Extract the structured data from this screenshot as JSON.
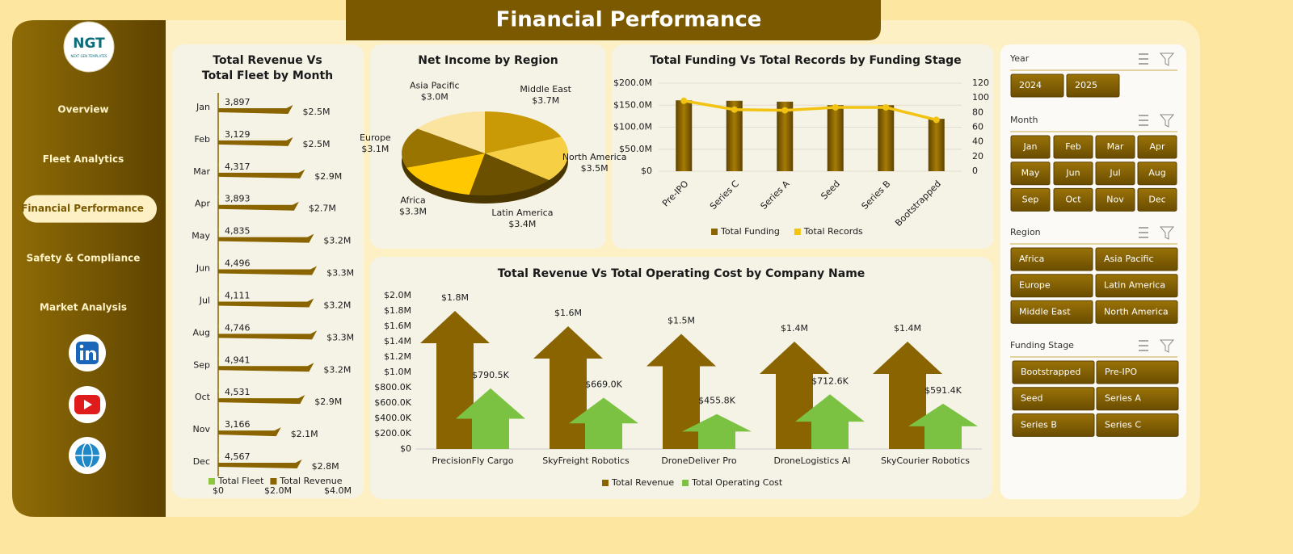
{
  "header": {
    "title": "Financial Performance"
  },
  "logo": {
    "name": "NGT",
    "tagline": "NEXT GEN TEMPLATES"
  },
  "nav": {
    "items": [
      "Overview",
      "Fleet Analytics",
      "Financial Performance",
      "Safety & Compliance",
      "Market Analysis"
    ],
    "active": 2
  },
  "slicers": [
    {
      "title": "Year",
      "items": [
        "2024",
        "2025"
      ]
    },
    {
      "title": "Month",
      "items": [
        "Jan",
        "Feb",
        "Mar",
        "Apr",
        "May",
        "Jun",
        "Jul",
        "Aug",
        "Sep",
        "Oct",
        "Nov",
        "Dec"
      ]
    },
    {
      "title": "Region",
      "items": [
        "Africa",
        "Asia Pacific",
        "Europe",
        "Latin America",
        "Middle East",
        "North America"
      ]
    },
    {
      "title": "Funding Stage",
      "items": [
        "Bootstrapped",
        "Pre-IPO",
        "Seed",
        "Series A",
        "Series B",
        "Series C"
      ]
    }
  ],
  "chart_data": [
    {
      "type": "bar",
      "orientation": "horizontal",
      "title": "Total Revenue Vs Total Fleet by Month",
      "categories": [
        "Jan",
        "Feb",
        "Mar",
        "Apr",
        "May",
        "Jun",
        "Jul",
        "Aug",
        "Sep",
        "Oct",
        "Nov",
        "Dec"
      ],
      "series": [
        {
          "name": "Total Fleet",
          "color": "#8dc63f",
          "values": [
            3897,
            3129,
            4317,
            3893,
            4835,
            4496,
            4111,
            4746,
            4941,
            4531,
            3166,
            4567
          ],
          "value_labels": [
            "3,897",
            "3,129",
            "4,317",
            "3,893",
            "4,835",
            "4,496",
            "4,111",
            "4,746",
            "4,941",
            "4,531",
            "3,166",
            "4,567"
          ]
        },
        {
          "name": "Total Revenue",
          "color": "#8a6400",
          "values": [
            2500000,
            2500000,
            2900000,
            2700000,
            3200000,
            3300000,
            3200000,
            3300000,
            3200000,
            2900000,
            2100000,
            2800000
          ],
          "value_labels": [
            "$2.5M",
            "$2.5M",
            "$2.9M",
            "$2.7M",
            "$3.2M",
            "$3.3M",
            "$3.2M",
            "$3.3M",
            "$3.2M",
            "$2.9M",
            "$2.1M",
            "$2.8M"
          ]
        }
      ],
      "xlim": [
        0,
        4000000
      ],
      "xticks": [
        {
          "value": 0,
          "label": "$0"
        },
        {
          "value": 2000000,
          "label": "$2.0M"
        },
        {
          "value": 4000000,
          "label": "$4.0M"
        }
      ]
    },
    {
      "type": "pie",
      "title": "Net Income by Region",
      "categories": [
        "Middle East",
        "North America",
        "Latin America",
        "Africa",
        "Europe",
        "Asia Pacific"
      ],
      "values": [
        3700000,
        3500000,
        3400000,
        3300000,
        3100000,
        3000000
      ],
      "value_labels": [
        "$3.7M",
        "$3.5M",
        "$3.4M",
        "$3.3M",
        "$3.1M",
        "$3.0M"
      ],
      "colors": [
        "#c99a06",
        "#f6cf45",
        "#6b5000",
        "#ffc800",
        "#9a7400",
        "#fbe3a0"
      ]
    },
    {
      "type": "combo",
      "title": "Total Funding Vs Total Records by Funding Stage",
      "categories": [
        "Pre-IPO",
        "Series C",
        "Series A",
        "Seed",
        "Series B",
        "Bootstrapped"
      ],
      "series": [
        {
          "name": "Total Funding",
          "color": "#8a6400",
          "values": [
            161000000,
            160000000,
            158000000,
            150000000,
            150000000,
            119000000
          ]
        },
        {
          "name": "Total Records",
          "color": "#f2c311",
          "axis": "y2",
          "values": [
            96,
            84,
            83,
            87,
            87,
            70
          ]
        }
      ],
      "ylim": [
        0,
        200000000
      ],
      "yticks": [
        {
          "value": 0,
          "label": "$0"
        },
        {
          "value": 50000000,
          "label": "$50.0M"
        },
        {
          "value": 100000000,
          "label": "$100.0M"
        },
        {
          "value": 150000000,
          "label": "$150.0M"
        },
        {
          "value": 200000000,
          "label": "$200.0M"
        }
      ],
      "y2lim": [
        0,
        120
      ],
      "y2ticks": [
        0,
        20,
        40,
        60,
        80,
        100,
        120
      ],
      "grid": true
    },
    {
      "type": "bar",
      "orientation": "vertical",
      "title": "Total Revenue Vs Total Operating Cost by Company Name",
      "categories": [
        "PrecisionFly Cargo",
        "SkyFreight Robotics",
        "DroneDeliver Pro",
        "DroneLogistics AI",
        "SkyCourier Robotics"
      ],
      "series": [
        {
          "name": "Total Revenue",
          "color": "#8a6400",
          "values": [
            1800000,
            1600000,
            1500000,
            1400000,
            1400000
          ],
          "value_labels": [
            "$1.8M",
            "$1.6M",
            "$1.5M",
            "$1.4M",
            "$1.4M"
          ]
        },
        {
          "name": "Total Operating Cost",
          "color": "#7cc242",
          "values": [
            790500,
            669000,
            455800,
            712600,
            591400
          ],
          "value_labels": [
            "$790.5K",
            "$669.0K",
            "$455.8K",
            "$712.6K",
            "$591.4K"
          ]
        }
      ],
      "ylim": [
        0,
        2000000
      ],
      "yticks": [
        {
          "value": 0,
          "label": "$0"
        },
        {
          "value": 200000,
          "label": "$200.0K"
        },
        {
          "value": 400000,
          "label": "$400.0K"
        },
        {
          "value": 600000,
          "label": "$600.0K"
        },
        {
          "value": 800000,
          "label": "$800.0K"
        },
        {
          "value": 1000000,
          "label": "$1.0M"
        },
        {
          "value": 1200000,
          "label": "$1.2M"
        },
        {
          "value": 1400000,
          "label": "$1.4M"
        },
        {
          "value": 1600000,
          "label": "$1.6M"
        },
        {
          "value": 1800000,
          "label": "$1.8M"
        },
        {
          "value": 2000000,
          "label": "$2.0M"
        }
      ]
    }
  ]
}
